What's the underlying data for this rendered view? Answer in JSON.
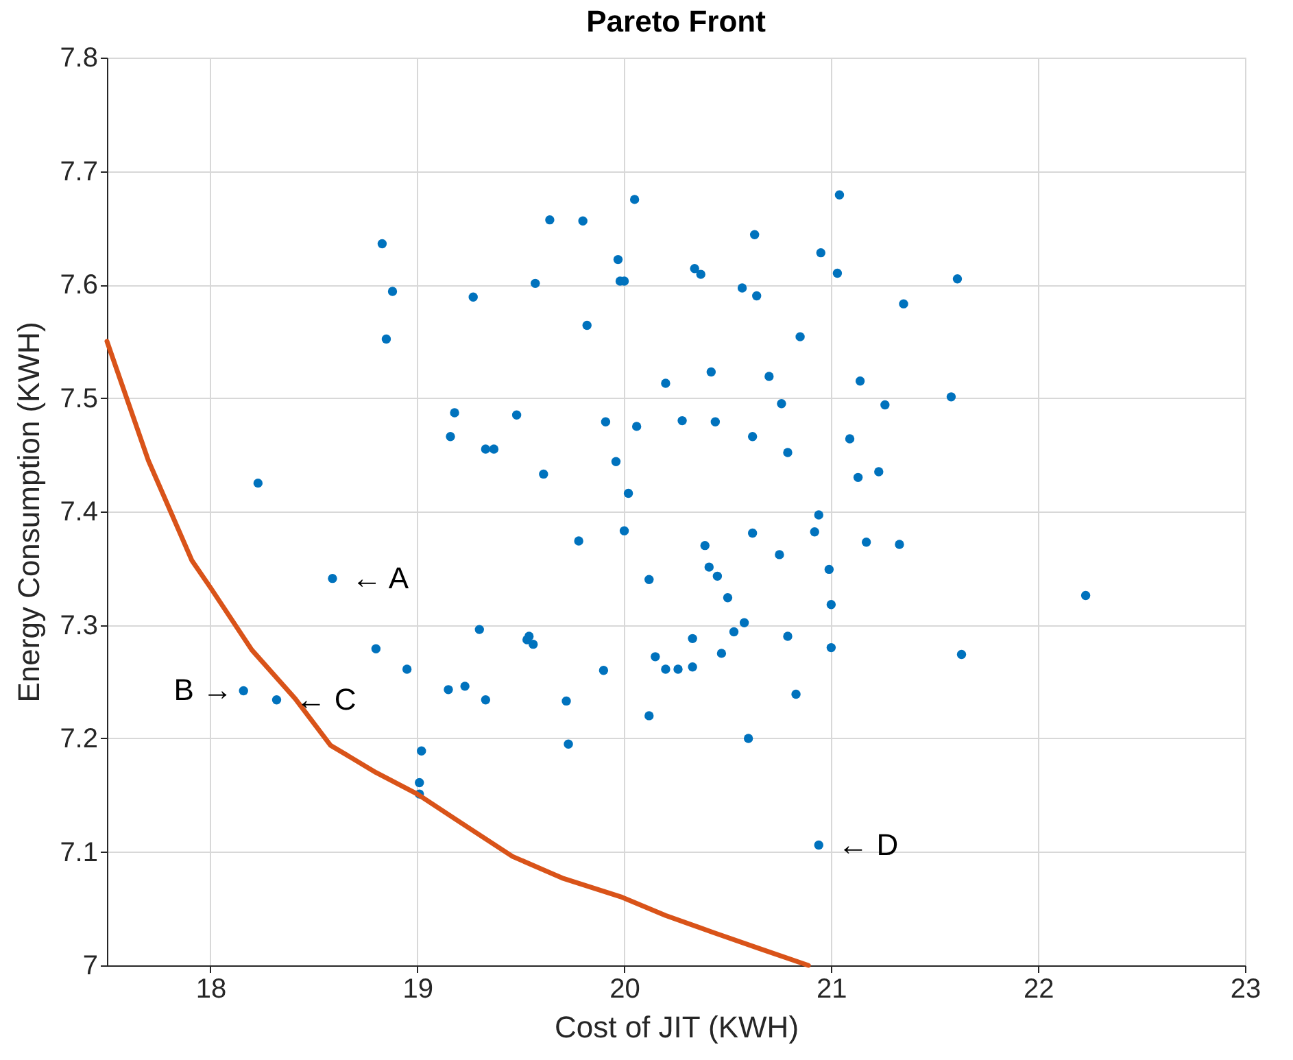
{
  "chart_data": {
    "type": "scatter",
    "title": "Pareto Front",
    "xlabel": "Cost of JIT (KWH)",
    "ylabel": "Energy Consumption (KWH)",
    "xlim": [
      17.5,
      23
    ],
    "xticks": [
      18,
      19,
      20,
      21,
      22,
      23
    ],
    "ylim": [
      7,
      7.8
    ],
    "yticks": [
      7,
      7.1,
      7.2,
      7.3,
      7.4,
      7.5,
      7.6,
      7.7,
      7.8
    ],
    "grid": true,
    "series": [
      {
        "marker": "circle",
        "color": "#0072bd",
        "x": [
          20.05,
          19.64,
          19.8,
          18.83,
          19.97,
          19.98,
          20.0,
          19.57,
          18.88,
          19.27,
          19.82,
          18.85,
          19.18,
          19.48,
          19.91,
          20.06,
          19.16,
          19.33,
          19.37,
          19.96,
          19.61,
          20.02,
          18.23,
          20.0,
          19.78,
          18.59,
          20.12,
          21.04,
          20.63,
          20.95,
          20.34,
          20.37,
          21.03,
          21.61,
          20.57,
          20.64,
          21.35,
          20.85,
          20.42,
          20.2,
          20.7,
          21.14,
          20.76,
          21.26,
          21.58,
          20.28,
          20.44,
          20.62,
          21.09,
          20.79,
          21.13,
          21.23,
          20.94,
          20.62,
          20.92,
          21.17,
          21.33,
          20.39,
          20.75,
          20.41,
          20.45,
          20.99,
          21.0,
          22.23,
          20.5,
          20.58,
          20.53,
          20.33,
          20.79,
          21.0,
          20.47,
          21.63,
          20.15,
          20.2,
          20.26,
          20.33,
          20.83,
          20.12,
          20.6,
          20.94,
          19.3,
          19.53,
          19.54,
          19.56,
          18.8,
          19.9,
          18.95,
          18.16,
          18.32,
          19.15,
          19.23,
          19.33,
          19.72,
          19.02,
          19.73,
          19.01,
          19.01
        ],
        "values": [
          7.675,
          7.657,
          7.656,
          7.636,
          7.622,
          7.603,
          7.603,
          7.601,
          7.594,
          7.589,
          7.564,
          7.552,
          7.487,
          7.485,
          7.479,
          7.475,
          7.466,
          7.455,
          7.455,
          7.444,
          7.433,
          7.416,
          7.425,
          7.383,
          7.374,
          7.341,
          7.34,
          7.679,
          7.644,
          7.628,
          7.614,
          7.609,
          7.61,
          7.605,
          7.597,
          7.59,
          7.583,
          7.554,
          7.523,
          7.513,
          7.519,
          7.515,
          7.495,
          7.494,
          7.501,
          7.48,
          7.479,
          7.466,
          7.464,
          7.452,
          7.43,
          7.435,
          7.397,
          7.381,
          7.382,
          7.373,
          7.371,
          7.37,
          7.362,
          7.351,
          7.343,
          7.349,
          7.318,
          7.326,
          7.324,
          7.302,
          7.294,
          7.288,
          7.29,
          7.28,
          7.275,
          7.274,
          7.272,
          7.261,
          7.261,
          7.263,
          7.239,
          7.22,
          7.2,
          7.106,
          7.296,
          7.287,
          7.29,
          7.283,
          7.279,
          7.26,
          7.261,
          7.242,
          7.234,
          7.243,
          7.246,
          7.234,
          7.233,
          7.189,
          7.195,
          7.161,
          7.151
        ]
      },
      {
        "type": "line",
        "line_style": "solid",
        "color": "#d95319",
        "x": [
          17.5,
          17.7,
          17.91,
          18.0,
          18.2,
          18.41,
          18.58,
          18.8,
          19.0,
          19.2,
          19.46,
          19.7,
          19.99,
          20.2,
          20.43,
          20.65,
          20.89
        ],
        "values": [
          7.55,
          7.445,
          7.357,
          7.333,
          7.278,
          7.235,
          7.194,
          7.17,
          7.151,
          7.127,
          7.096,
          7.077,
          7.06,
          7.044,
          7.029,
          7.015,
          7.0
        ]
      }
    ],
    "annotations": [
      {
        "text": "← A",
        "x": 18.59,
        "y": 7.341
      },
      {
        "text": "B →",
        "x": 18.16,
        "y": 7.242
      },
      {
        "text": "← C",
        "x": 18.32,
        "y": 7.234
      },
      {
        "text": "← D",
        "x": 20.94,
        "y": 7.106
      }
    ]
  }
}
